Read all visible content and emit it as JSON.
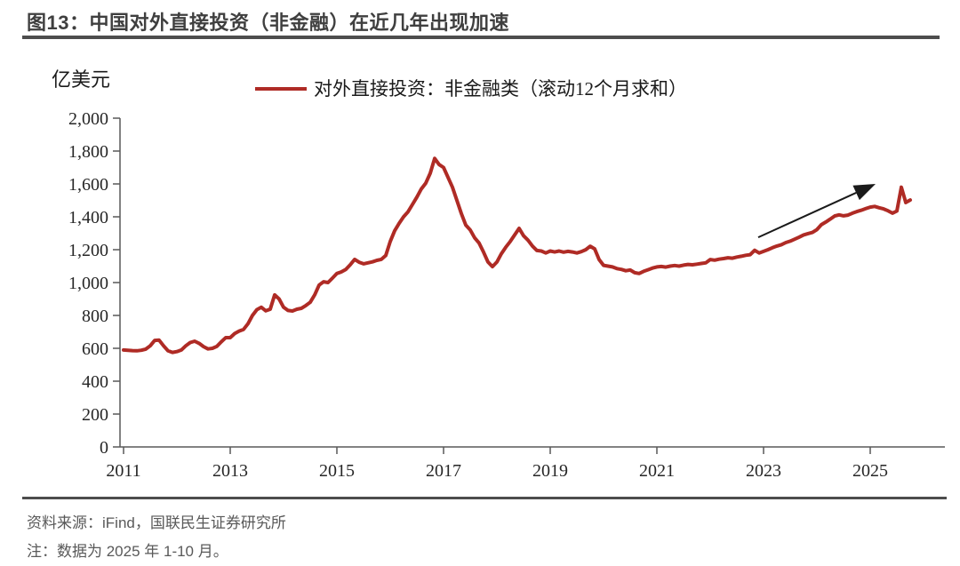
{
  "figure": {
    "title": "图13：中国对外直接投资（非金融）在近几年出现加速",
    "unit_label": "亿美元",
    "source": "资料来源：iFind，国联民生证券研究所",
    "note": "注：数据为 2025 年 1-10 月。"
  },
  "colors": {
    "line": "#af2b25",
    "title_text": "#3f3f3f",
    "rule": "#4d4d4d",
    "footnote_text": "#595959",
    "axis": "#595959",
    "arrow": "#1a1a1a"
  },
  "chart_data": {
    "type": "line",
    "title": "图13：中国对外直接投资（非金融）在近几年出现加速",
    "ylabel": "亿美元",
    "xlabel": "",
    "grid": false,
    "legend_position": "top",
    "legend": [
      {
        "name": "对外直接投资：非金融类（滚动12个月求和）",
        "color": "#af2b25"
      }
    ],
    "ylim": [
      0,
      2000
    ],
    "y_ticks": [
      {
        "value": 0,
        "label": "0"
      },
      {
        "value": 200,
        "label": "200"
      },
      {
        "value": 400,
        "label": "400"
      },
      {
        "value": 600,
        "label": "600"
      },
      {
        "value": 800,
        "label": "800"
      },
      {
        "value": 1000,
        "label": "1,000"
      },
      {
        "value": 1200,
        "label": "1,200"
      },
      {
        "value": 1400,
        "label": "1,400"
      },
      {
        "value": 1600,
        "label": "1,600"
      },
      {
        "value": 1800,
        "label": "1,800"
      },
      {
        "value": 2000,
        "label": "2,000"
      }
    ],
    "x_ticks": [
      {
        "value": 2011,
        "label": "2011"
      },
      {
        "value": 2013,
        "label": "2013"
      },
      {
        "value": 2015,
        "label": "2015"
      },
      {
        "value": 2017,
        "label": "2017"
      },
      {
        "value": 2019,
        "label": "2019"
      },
      {
        "value": 2021,
        "label": "2021"
      },
      {
        "value": 2023,
        "label": "2023"
      },
      {
        "value": 2025,
        "label": "2025"
      }
    ],
    "x_start": "2011-01",
    "x_end": "2025-10",
    "x_frequency": "monthly",
    "series": [
      {
        "name": "对外直接投资：非金融类（滚动12个月求和）",
        "unit": "亿美元",
        "values": [
          590,
          588,
          586,
          585,
          588,
          595,
          615,
          648,
          650,
          615,
          585,
          575,
          580,
          590,
          615,
          635,
          643,
          630,
          610,
          596,
          600,
          612,
          640,
          665,
          665,
          690,
          705,
          715,
          750,
          800,
          835,
          850,
          828,
          838,
          925,
          900,
          850,
          830,
          827,
          838,
          843,
          860,
          880,
          925,
          985,
          1005,
          1000,
          1027,
          1055,
          1065,
          1080,
          1108,
          1141,
          1124,
          1114,
          1120,
          1126,
          1135,
          1141,
          1165,
          1250,
          1315,
          1360,
          1400,
          1430,
          1475,
          1520,
          1570,
          1605,
          1665,
          1755,
          1718,
          1700,
          1640,
          1580,
          1500,
          1420,
          1350,
          1320,
          1272,
          1240,
          1185,
          1125,
          1097,
          1125,
          1175,
          1215,
          1250,
          1290,
          1330,
          1285,
          1258,
          1222,
          1195,
          1192,
          1180,
          1192,
          1186,
          1192,
          1185,
          1190,
          1186,
          1180,
          1188,
          1200,
          1221,
          1205,
          1140,
          1105,
          1100,
          1095,
          1085,
          1080,
          1072,
          1076,
          1060,
          1055,
          1068,
          1078,
          1088,
          1095,
          1098,
          1094,
          1100,
          1104,
          1100,
          1106,
          1110,
          1108,
          1112,
          1116,
          1120,
          1140,
          1136,
          1142,
          1146,
          1151,
          1148,
          1155,
          1160,
          1166,
          1170,
          1196,
          1180,
          1190,
          1200,
          1212,
          1222,
          1230,
          1243,
          1252,
          1264,
          1276,
          1290,
          1298,
          1305,
          1322,
          1352,
          1368,
          1386,
          1405,
          1412,
          1406,
          1410,
          1422,
          1432,
          1440,
          1450,
          1459,
          1463,
          1455,
          1448,
          1437,
          1422,
          1435,
          1580,
          1487,
          1502
        ]
      }
    ],
    "annotation": {
      "type": "arrow",
      "from": {
        "year": 2022.9,
        "value": 1275
      },
      "to": {
        "year": 2025.1,
        "value": 1600
      }
    }
  }
}
